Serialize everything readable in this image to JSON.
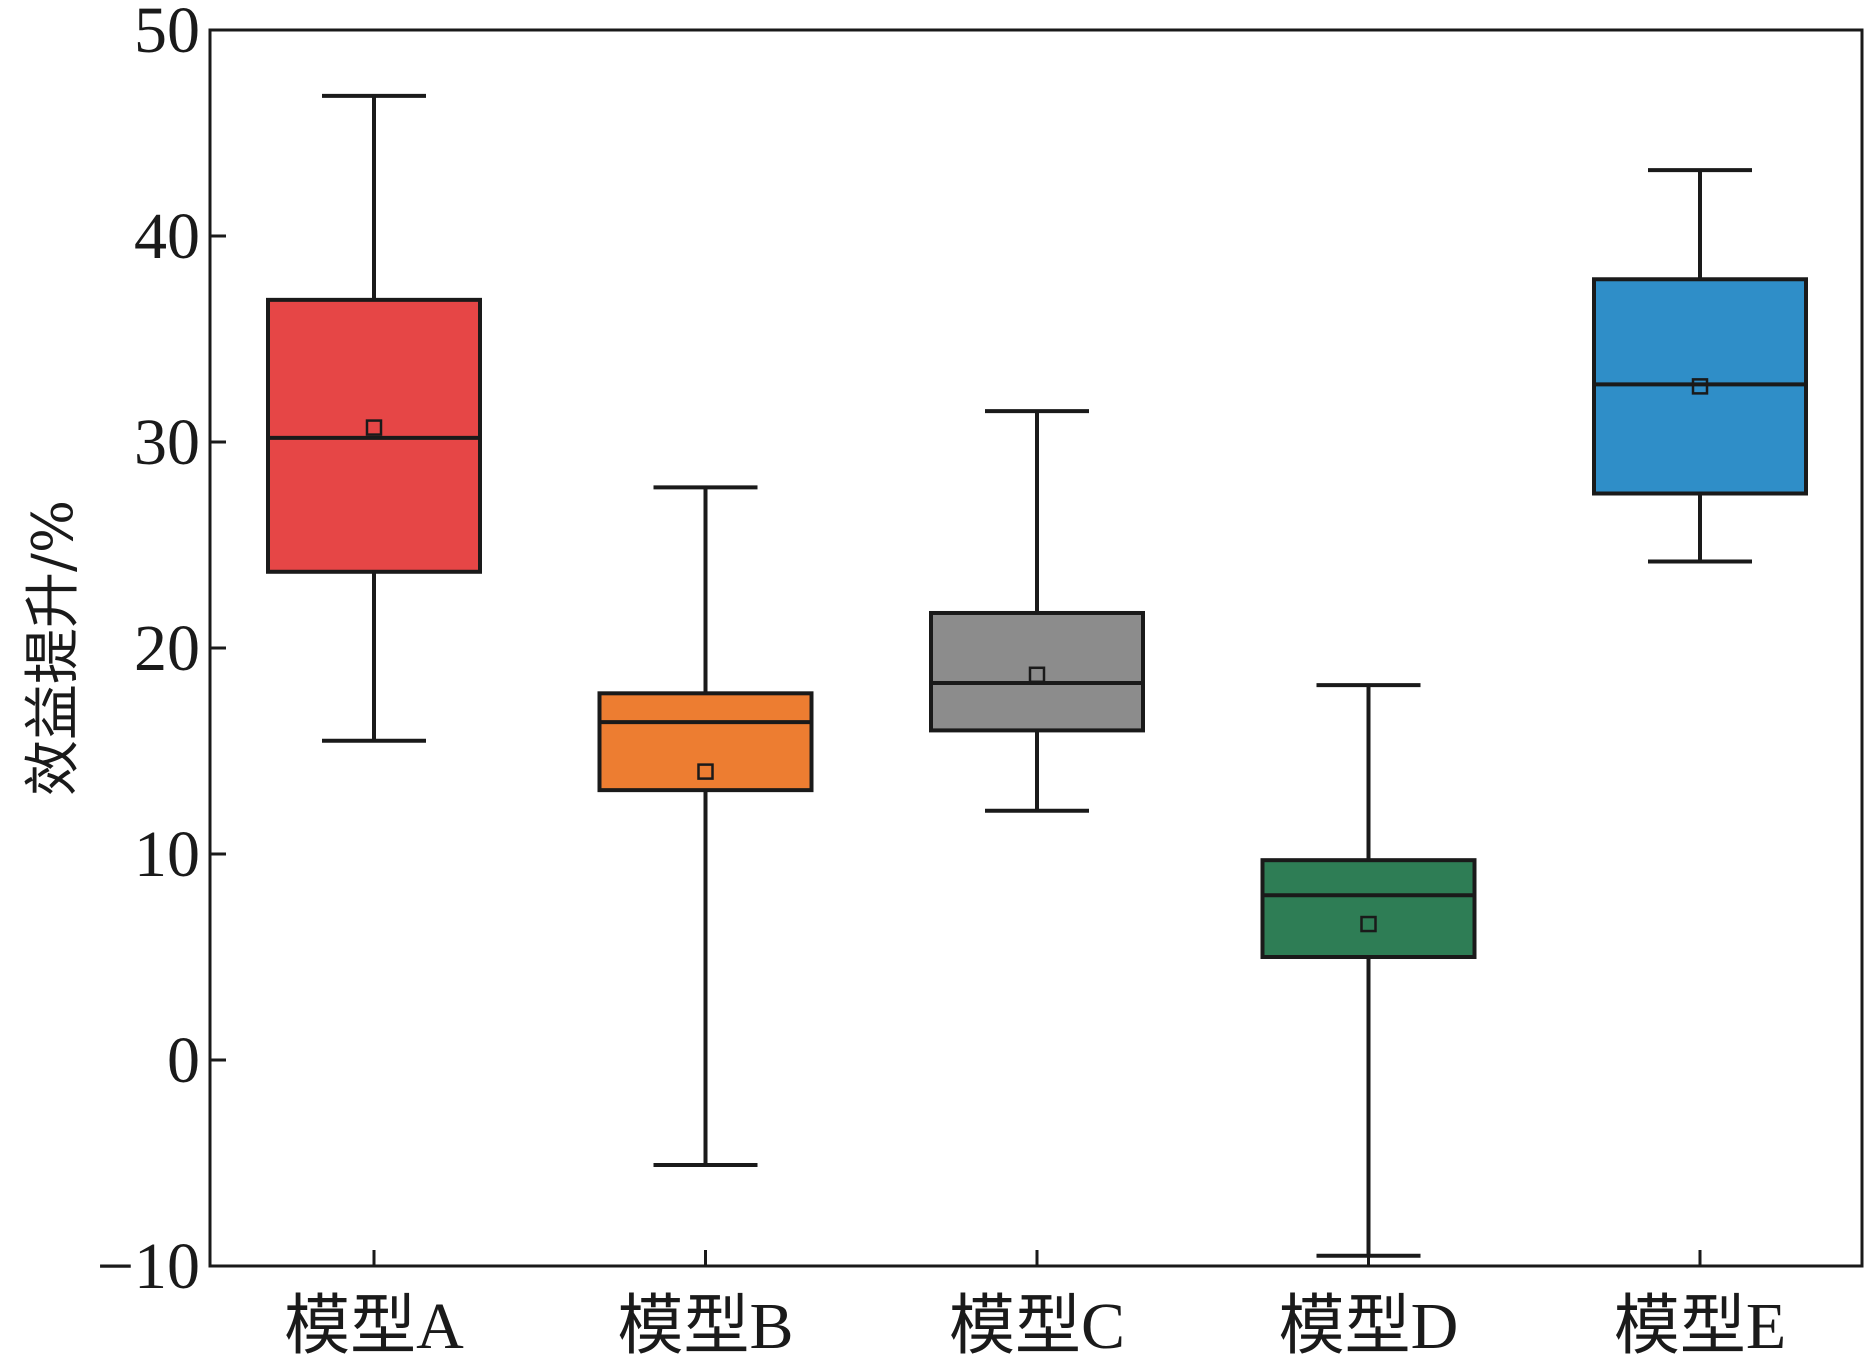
{
  "chart_data": {
    "type": "box",
    "ylabel": "效益提升/%",
    "ylim": [
      -10,
      50
    ],
    "yticks": [
      -10,
      0,
      10,
      20,
      30,
      40,
      50
    ],
    "ytick_labels": [
      "−10",
      "0",
      "10",
      "20",
      "30",
      "40",
      "50"
    ],
    "categories": [
      "模型A",
      "模型B",
      "模型C",
      "模型D",
      "模型E"
    ],
    "boxes": [
      {
        "name": "模型A",
        "min": 15.5,
        "q1": 23.7,
        "median": 30.2,
        "q3": 36.9,
        "max": 46.8,
        "mean": 30.7,
        "color": "#e64646"
      },
      {
        "name": "模型B",
        "min": -5.1,
        "q1": 13.1,
        "median": 16.4,
        "q3": 17.8,
        "max": 27.8,
        "mean": 14.0,
        "color": "#ed7d31"
      },
      {
        "name": "模型C",
        "min": 12.1,
        "q1": 16.0,
        "median": 18.3,
        "q3": 21.7,
        "max": 31.5,
        "mean": 18.7,
        "color": "#8c8c8c"
      },
      {
        "name": "模型D",
        "min": -9.5,
        "q1": 5.0,
        "median": 8.0,
        "q3": 9.7,
        "max": 18.2,
        "mean": 6.6,
        "color": "#2e7d55"
      },
      {
        "name": "模型E",
        "min": 24.2,
        "q1": 27.5,
        "median": 32.8,
        "q3": 37.9,
        "max": 43.2,
        "mean": 32.7,
        "color": "#2f8ec8"
      }
    ],
    "grid": false,
    "legend": "none"
  }
}
